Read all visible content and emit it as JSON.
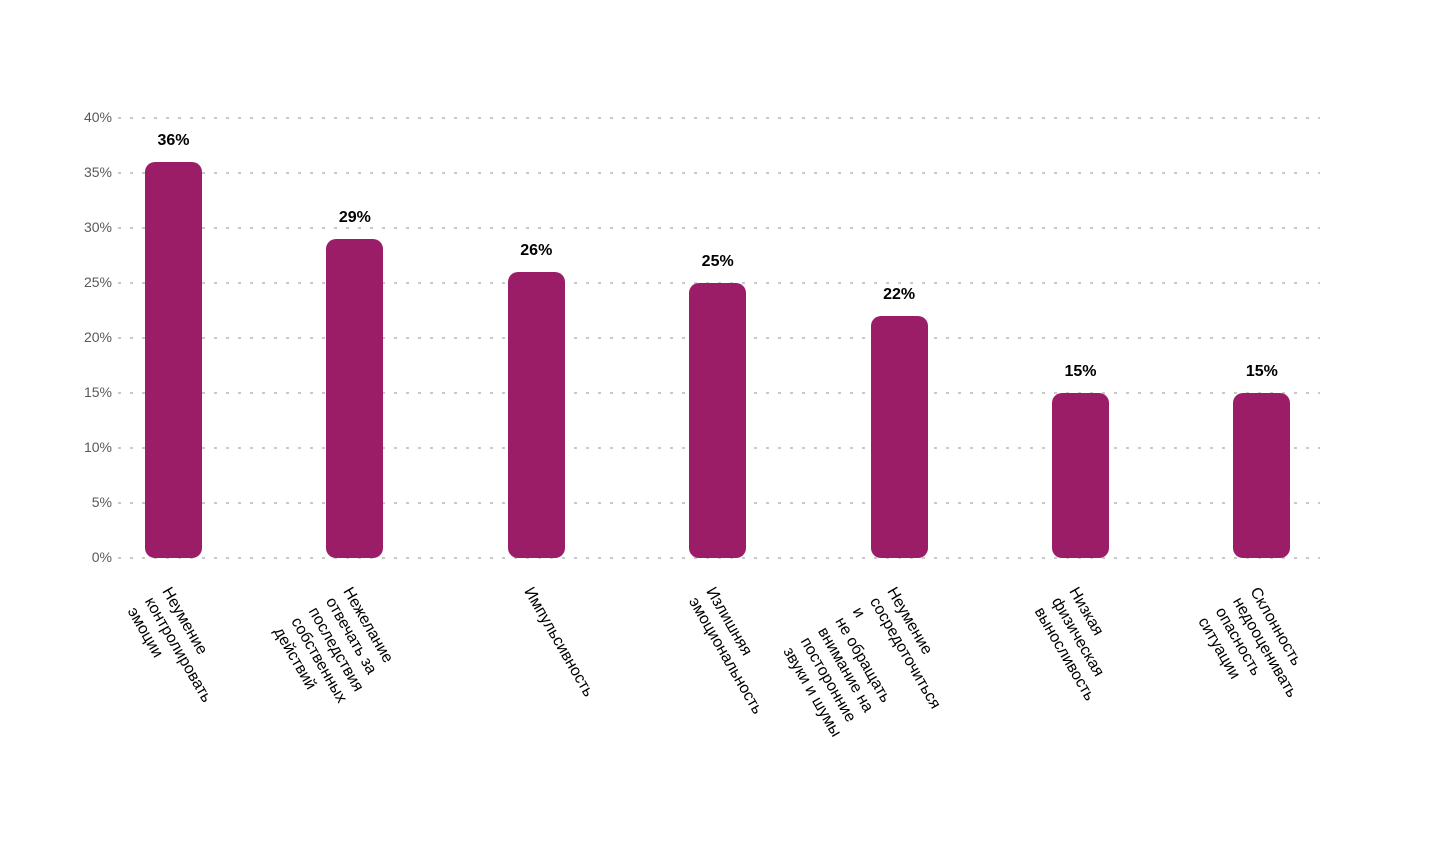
{
  "chart_data": {
    "type": "bar",
    "title": "",
    "categories": [
      "Неумение\nконтролировать эмоции",
      "Нежелание отвечать за\nпоследствия собственных\nдействий",
      "Импульсивность",
      "Излишняя\nэмоциональность",
      "Неумение сосредоточиться и\nне обращать внимание на\nпосторонние звуки и шумы",
      "Низкая физическая\nвыносливость",
      "Склонность недооценивать\nопасность ситуации"
    ],
    "values": [
      36,
      29,
      26,
      25,
      22,
      15,
      15
    ],
    "value_labels": [
      "36%",
      "29%",
      "26%",
      "25%",
      "22%",
      "15%",
      "15%"
    ],
    "ytick_labels": [
      "0%",
      "5%",
      "10%",
      "15%",
      "20%",
      "25%",
      "30%",
      "35%",
      "40%"
    ],
    "ylim": [
      0,
      40
    ],
    "ytick_step": 5,
    "grid": "horizontal-dotted",
    "legend": "none",
    "category_label_rotation_deg": 60,
    "colors": {
      "bar": "#9B1D67",
      "gridline": "#C9C9C9",
      "y_axis_text": "#58595B",
      "value_label_text": "#000000",
      "category_label_text": "#000000",
      "background": "#FFFFFF"
    }
  }
}
